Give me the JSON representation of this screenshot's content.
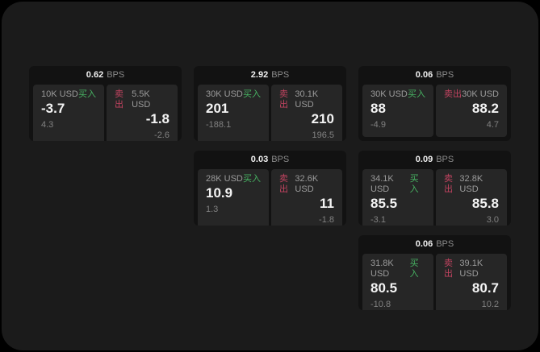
{
  "labels": {
    "bps": "BPS",
    "buy": "买入",
    "sell": "卖出"
  },
  "colors": {
    "background_outside": "#000000",
    "panel_background": "#1b1b1b",
    "card_background": "#121212",
    "tile_background": "#262626",
    "buy_accent": "#47b262",
    "sell_accent": "#c24360",
    "price_text": "#f4f4f4",
    "muted_text": "#8a8a8a"
  },
  "cards": [
    {
      "row": 1,
      "col": 1,
      "bps": "0.62",
      "buy": {
        "amount": "10K USD",
        "price": "-3.7",
        "delta": "4.3"
      },
      "sell": {
        "amount": "5.5K USD",
        "price": "-1.8",
        "delta": "-2.6"
      }
    },
    {
      "row": 1,
      "col": 2,
      "bps": "2.92",
      "buy": {
        "amount": "30K USD",
        "price": "201",
        "delta": "-188.1"
      },
      "sell": {
        "amount": "30.1K USD",
        "price": "210",
        "delta": "196.5"
      }
    },
    {
      "row": 1,
      "col": 3,
      "bps": "0.06",
      "buy": {
        "amount": "30K USD",
        "price": "88",
        "delta": "-4.9"
      },
      "sell": {
        "amount": "30K USD",
        "price": "88.2",
        "delta": "4.7"
      }
    },
    {
      "row": 2,
      "col": 2,
      "bps": "0.03",
      "buy": {
        "amount": "28K USD",
        "price": "10.9",
        "delta": "1.3"
      },
      "sell": {
        "amount": "32.6K USD",
        "price": "11",
        "delta": "-1.8"
      }
    },
    {
      "row": 2,
      "col": 3,
      "bps": "0.09",
      "buy": {
        "amount": "34.1K USD",
        "price": "85.5",
        "delta": "-3.1"
      },
      "sell": {
        "amount": "32.8K USD",
        "price": "85.8",
        "delta": "3.0"
      }
    },
    {
      "row": 3,
      "col": 3,
      "bps": "0.06",
      "buy": {
        "amount": "31.8K USD",
        "price": "80.5",
        "delta": "-10.8"
      },
      "sell": {
        "amount": "39.1K USD",
        "price": "80.7",
        "delta": "10.2"
      }
    }
  ]
}
